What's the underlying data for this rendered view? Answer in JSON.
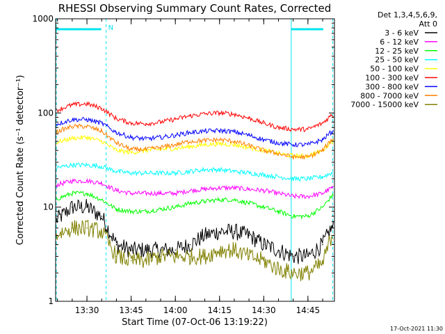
{
  "chart_data": {
    "type": "line",
    "title": "RHESSI Observing Summary Count Rates, Corrected",
    "xlabel": "Start Time (07-Oct-06 13:19:22)",
    "ylabel": "Corrected Count Rate (s⁻¹ detector⁻¹)",
    "yscale": "log",
    "ylim": [
      1,
      1000
    ],
    "xlim": [
      "13:19:22",
      "14:54:00"
    ],
    "y_ticks": [
      "1",
      "10",
      "100",
      "1000"
    ],
    "x_ticks": [
      "13:30",
      "13:45",
      "14:00",
      "14:15",
      "14:30",
      "14:45"
    ],
    "detector_info": [
      "Det 1,3,4,5,6,9,",
      "Att 0"
    ],
    "timestamp": "17-Oct-2021 11:30",
    "night_marker": "N",
    "series": [
      {
        "name": "3 - 6 keV",
        "color": "#000000",
        "x": [
          "13:19",
          "13:25",
          "13:30",
          "13:35",
          "13:40",
          "13:45",
          "13:50",
          "13:55",
          "14:00",
          "14:05",
          "14:10",
          "14:15",
          "14:20",
          "14:25",
          "14:30",
          "14:35",
          "14:40",
          "14:45",
          "14:50",
          "14:53"
        ],
        "values": [
          7,
          10,
          10,
          8,
          4,
          3.5,
          3.5,
          3.5,
          3.5,
          4,
          5,
          5.5,
          5.5,
          5,
          4,
          3.5,
          3,
          3,
          4,
          6
        ]
      },
      {
        "name": "6 - 12 keV",
        "color": "#ff00ff",
        "x": [
          "13:19",
          "13:25",
          "13:30",
          "13:35",
          "13:40",
          "13:45",
          "13:50",
          "13:55",
          "14:00",
          "14:05",
          "14:10",
          "14:15",
          "14:20",
          "14:25",
          "14:30",
          "14:35",
          "14:40",
          "14:45",
          "14:50",
          "14:53"
        ],
        "values": [
          17,
          19,
          19,
          18,
          15,
          14,
          14,
          14,
          14,
          15,
          15.5,
          16,
          16,
          15.5,
          15,
          14,
          13,
          13,
          14,
          16
        ]
      },
      {
        "name": "12 - 25 keV",
        "color": "#00ff00",
        "x": [
          "13:19",
          "13:25",
          "13:30",
          "13:35",
          "13:40",
          "13:45",
          "13:50",
          "13:55",
          "14:00",
          "14:05",
          "14:10",
          "14:15",
          "14:20",
          "14:25",
          "14:30",
          "14:35",
          "14:40",
          "14:45",
          "14:50",
          "14:53"
        ],
        "values": [
          12,
          14,
          14,
          12,
          9.5,
          9,
          9,
          9.5,
          10,
          11,
          11.5,
          12,
          12,
          11,
          10,
          9,
          8,
          8,
          10,
          13
        ]
      },
      {
        "name": "25 - 50 keV",
        "color": "#00ffff",
        "x": [
          "13:19",
          "13:25",
          "13:30",
          "13:35",
          "13:40",
          "13:45",
          "13:50",
          "13:55",
          "14:00",
          "14:05",
          "14:10",
          "14:15",
          "14:20",
          "14:25",
          "14:30",
          "14:35",
          "14:40",
          "14:45",
          "14:50",
          "14:53"
        ],
        "values": [
          26,
          28,
          28,
          27,
          24,
          23,
          23,
          23,
          23,
          24,
          25,
          25,
          24,
          23,
          22,
          21,
          20,
          20,
          21,
          23
        ]
      },
      {
        "name": "50 - 100 keV",
        "color": "#ffff00",
        "x": [
          "13:19",
          "13:25",
          "13:30",
          "13:35",
          "13:40",
          "13:45",
          "13:50",
          "13:55",
          "14:00",
          "14:05",
          "14:10",
          "14:15",
          "14:20",
          "14:25",
          "14:30",
          "14:35",
          "14:40",
          "14:45",
          "14:50",
          "14:53"
        ],
        "values": [
          48,
          54,
          55,
          50,
          40,
          38,
          40,
          41,
          42,
          44,
          46,
          47,
          46,
          43,
          40,
          37,
          35,
          35,
          40,
          50
        ]
      },
      {
        "name": "100 - 300 keV",
        "color": "#ff0000",
        "x": [
          "13:19",
          "13:25",
          "13:30",
          "13:35",
          "13:40",
          "13:45",
          "13:50",
          "13:55",
          "14:00",
          "14:05",
          "14:10",
          "14:15",
          "14:20",
          "14:25",
          "14:30",
          "14:35",
          "14:40",
          "14:45",
          "14:50",
          "14:53"
        ],
        "values": [
          105,
          122,
          125,
          112,
          87,
          78,
          77,
          80,
          86,
          93,
          98,
          100,
          97,
          88,
          78,
          70,
          67,
          67,
          78,
          95
        ]
      },
      {
        "name": "300 - 800 keV",
        "color": "#0000ff",
        "x": [
          "13:19",
          "13:25",
          "13:30",
          "13:35",
          "13:40",
          "13:45",
          "13:50",
          "13:55",
          "14:00",
          "14:05",
          "14:10",
          "14:15",
          "14:20",
          "14:25",
          "14:30",
          "14:35",
          "14:40",
          "14:45",
          "14:50",
          "14:53"
        ],
        "values": [
          75,
          85,
          85,
          78,
          62,
          55,
          53,
          55,
          58,
          62,
          64,
          65,
          63,
          58,
          52,
          48,
          46,
          46,
          52,
          63
        ]
      },
      {
        "name": "800 - 7000 keV",
        "color": "#ff8000",
        "x": [
          "13:19",
          "13:25",
          "13:30",
          "13:35",
          "13:40",
          "13:45",
          "13:50",
          "13:55",
          "14:00",
          "14:05",
          "14:10",
          "14:15",
          "14:20",
          "14:25",
          "14:30",
          "14:35",
          "14:40",
          "14:45",
          "14:50",
          "14:53"
        ],
        "values": [
          62,
          72,
          72,
          64,
          48,
          41,
          41,
          43,
          46,
          50,
          51,
          52,
          50,
          45,
          40,
          37,
          34,
          34,
          40,
          52
        ]
      },
      {
        "name": "7000 - 15000 keV",
        "color": "#808000",
        "x": [
          "13:19",
          "13:25",
          "13:30",
          "13:35",
          "13:40",
          "13:45",
          "13:50",
          "13:55",
          "14:00",
          "14:05",
          "14:10",
          "14:15",
          "14:20",
          "14:25",
          "14:30",
          "14:35",
          "14:40",
          "14:45",
          "14:50",
          "14:53"
        ],
        "values": [
          5,
          6,
          6,
          5.5,
          3,
          2.7,
          2.7,
          3,
          3,
          3,
          3,
          3.5,
          3.5,
          3,
          2.7,
          2.2,
          2,
          2,
          2.5,
          5
        ]
      }
    ]
  }
}
